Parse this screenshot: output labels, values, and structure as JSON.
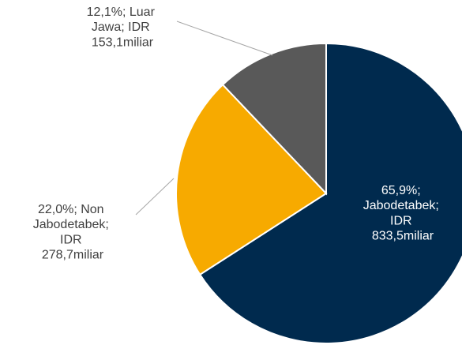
{
  "chart_data": {
    "type": "pie",
    "values": [
      65.9,
      22.0,
      12.1
    ],
    "value_labels": [
      "65,9%; Jabodetabek; IDR 833,5miliar",
      "22,0%; Non Jabodetabek; IDR 278,7miliar",
      "12,1%; Luar Jawa; IDR 153,1miliar"
    ],
    "colors": [
      "#002a4e",
      "#f7aa00",
      "#595959"
    ]
  }
}
